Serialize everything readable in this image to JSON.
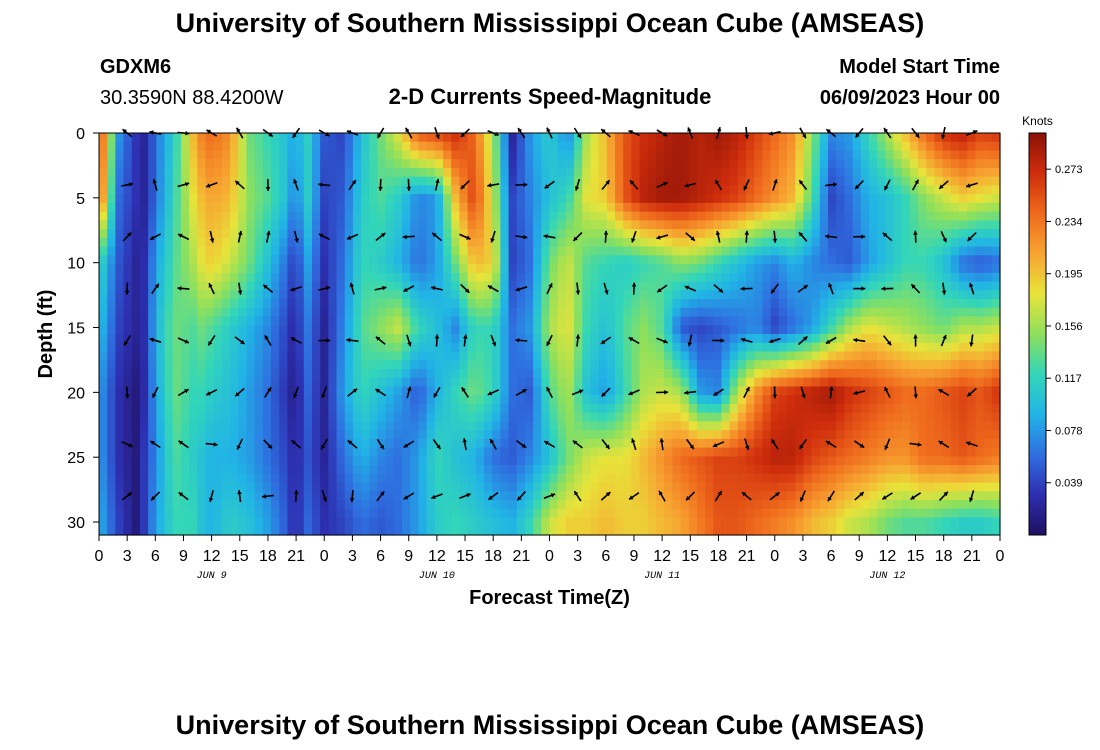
{
  "title": "University of Southern Mississippi Ocean Cube (AMSEAS)",
  "footer_title": "University of Southern Mississippi Ocean Cube (AMSEAS)",
  "station": {
    "name": "GDXM6",
    "coords": "30.3590N  88.4200W"
  },
  "model_start": {
    "label": "Model Start Time",
    "value": "06/09/2023 Hour 00"
  },
  "chart_data": {
    "type": "heatmap",
    "title": "2-D Currents Speed-Magnitude",
    "xlabel": "Forecast Time(Z)",
    "ylabel": "Depth (ft)",
    "x_ticks": [
      "0",
      "3",
      "6",
      "9",
      "12",
      "15",
      "18",
      "21",
      "0",
      "3",
      "6",
      "9",
      "12",
      "15",
      "18",
      "21",
      "0",
      "3",
      "6",
      "9",
      "12",
      "15",
      "18",
      "21",
      "0",
      "3",
      "6",
      "9",
      "12",
      "15",
      "18",
      "21",
      "0"
    ],
    "day_labels": [
      "JUN 9",
      "JUN 10",
      "JUN 11",
      "JUN 12"
    ],
    "y_ticks": [
      "0",
      "5",
      "10",
      "15",
      "20",
      "25",
      "30"
    ],
    "ylim": [
      0,
      31
    ],
    "xlim_hours": [
      0,
      96
    ],
    "colorbar": {
      "unit": "Knots",
      "ticks": [
        "0.273",
        "0.234",
        "0.195",
        "0.156",
        "0.117",
        "0.078",
        "0.039"
      ],
      "range": [
        0,
        0.3
      ],
      "colors": [
        "#1f1060",
        "#2d2fb0",
        "#2f6fe0",
        "#21b4e6",
        "#33d6b8",
        "#8ee05c",
        "#e8e33a",
        "#f7a431",
        "#ef6a1d",
        "#cf2d0c",
        "#8a1207"
      ]
    },
    "speed_fields": {
      "columns_hours": [
        0,
        2,
        4,
        5,
        6,
        8,
        10,
        11,
        12,
        14,
        16,
        18,
        20,
        21,
        22,
        24,
        26,
        28,
        30,
        32,
        34,
        36,
        38,
        40,
        42,
        44,
        46,
        48,
        50,
        52,
        54,
        56,
        58,
        60,
        62,
        64,
        66,
        68,
        70,
        72,
        74,
        76,
        78,
        80,
        82,
        84,
        86,
        88,
        90,
        92,
        94,
        96
      ],
      "depth_rows_ft": [
        0,
        5,
        10,
        15,
        20,
        25,
        30
      ],
      "speed_knots": [
        [
          0.27,
          0.08,
          0.03,
          0.02,
          0.06,
          0.11,
          0.2,
          0.23,
          0.24,
          0.22,
          0.14,
          0.12,
          0.1,
          0.08,
          0.12,
          0.05,
          0.04,
          0.1,
          0.14,
          0.18,
          0.25,
          0.26,
          0.27,
          0.24,
          0.16,
          0.02,
          0.08,
          0.11,
          0.07,
          0.16,
          0.2,
          0.25,
          0.27,
          0.28,
          0.29,
          0.28,
          0.29,
          0.28,
          0.26,
          0.24,
          0.22,
          0.15,
          0.07,
          0.08,
          0.12,
          0.16,
          0.2,
          0.24,
          0.27,
          0.28,
          0.26,
          0.27
        ],
        [
          0.25,
          0.06,
          0.03,
          0.02,
          0.06,
          0.12,
          0.18,
          0.2,
          0.21,
          0.2,
          0.15,
          0.13,
          0.1,
          0.06,
          0.12,
          0.04,
          0.05,
          0.11,
          0.13,
          0.11,
          0.07,
          0.08,
          0.2,
          0.26,
          0.17,
          0.04,
          0.07,
          0.1,
          0.12,
          0.18,
          0.19,
          0.25,
          0.28,
          0.29,
          0.29,
          0.28,
          0.27,
          0.26,
          0.24,
          0.22,
          0.2,
          0.13,
          0.04,
          0.06,
          0.09,
          0.1,
          0.12,
          0.15,
          0.17,
          0.19,
          0.18,
          0.17
        ],
        [
          0.12,
          0.05,
          0.02,
          0.03,
          0.08,
          0.13,
          0.16,
          0.18,
          0.19,
          0.17,
          0.14,
          0.1,
          0.06,
          0.03,
          0.09,
          0.03,
          0.06,
          0.12,
          0.11,
          0.09,
          0.06,
          0.08,
          0.14,
          0.2,
          0.19,
          0.04,
          0.06,
          0.14,
          0.17,
          0.13,
          0.12,
          0.11,
          0.12,
          0.13,
          0.15,
          0.14,
          0.12,
          0.1,
          0.08,
          0.07,
          0.09,
          0.07,
          0.06,
          0.05,
          0.08,
          0.1,
          0.12,
          0.12,
          0.1,
          0.06,
          0.05,
          0.06
        ],
        [
          0.1,
          0.04,
          0.02,
          0.03,
          0.09,
          0.14,
          0.13,
          0.14,
          0.13,
          0.11,
          0.09,
          0.07,
          0.04,
          0.02,
          0.07,
          0.02,
          0.07,
          0.13,
          0.15,
          0.17,
          0.12,
          0.1,
          0.07,
          0.12,
          0.12,
          0.06,
          0.08,
          0.16,
          0.18,
          0.12,
          0.1,
          0.13,
          0.15,
          0.13,
          0.05,
          0.04,
          0.05,
          0.06,
          0.07,
          0.04,
          0.06,
          0.08,
          0.12,
          0.16,
          0.18,
          0.17,
          0.16,
          0.15,
          0.14,
          0.16,
          0.16,
          0.17
        ],
        [
          0.08,
          0.03,
          0.01,
          0.03,
          0.08,
          0.14,
          0.12,
          0.12,
          0.11,
          0.1,
          0.08,
          0.06,
          0.03,
          0.01,
          0.06,
          0.02,
          0.08,
          0.12,
          0.1,
          0.08,
          0.05,
          0.09,
          0.12,
          0.14,
          0.12,
          0.06,
          0.05,
          0.13,
          0.16,
          0.1,
          0.08,
          0.12,
          0.16,
          0.17,
          0.16,
          0.08,
          0.07,
          0.16,
          0.22,
          0.26,
          0.27,
          0.28,
          0.29,
          0.27,
          0.26,
          0.25,
          0.24,
          0.24,
          0.25,
          0.26,
          0.25,
          0.27
        ],
        [
          0.08,
          0.03,
          0.01,
          0.04,
          0.07,
          0.13,
          0.11,
          0.1,
          0.09,
          0.09,
          0.08,
          0.06,
          0.04,
          0.02,
          0.05,
          0.02,
          0.06,
          0.09,
          0.07,
          0.06,
          0.08,
          0.12,
          0.1,
          0.09,
          0.06,
          0.05,
          0.07,
          0.1,
          0.14,
          0.17,
          0.18,
          0.18,
          0.2,
          0.22,
          0.24,
          0.25,
          0.26,
          0.26,
          0.27,
          0.28,
          0.28,
          0.26,
          0.25,
          0.24,
          0.23,
          0.22,
          0.22,
          0.24,
          0.24,
          0.25,
          0.24,
          0.23
        ],
        [
          0.09,
          0.04,
          0.01,
          0.04,
          0.08,
          0.12,
          0.12,
          0.1,
          0.09,
          0.11,
          0.1,
          0.08,
          0.05,
          0.02,
          0.06,
          0.03,
          0.04,
          0.06,
          0.05,
          0.06,
          0.08,
          0.11,
          0.12,
          0.11,
          0.1,
          0.09,
          0.12,
          0.17,
          0.19,
          0.19,
          0.2,
          0.19,
          0.19,
          0.2,
          0.21,
          0.23,
          0.25,
          0.25,
          0.24,
          0.23,
          0.22,
          0.2,
          0.19,
          0.17,
          0.16,
          0.14,
          0.13,
          0.13,
          0.12,
          0.11,
          0.11,
          0.12
        ]
      ]
    }
  }
}
